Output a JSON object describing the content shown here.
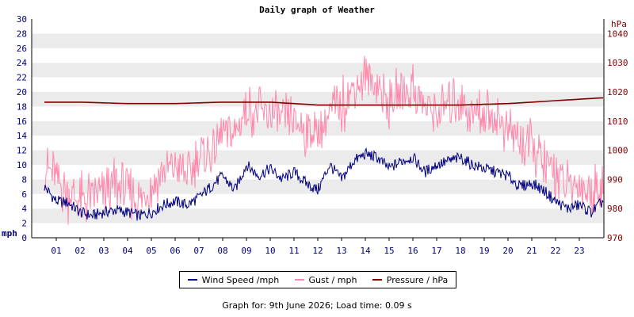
{
  "chart_data": {
    "type": "line",
    "title": "Daily graph of Weather",
    "ylabel_left": "mph",
    "ylabel_right": "hPa",
    "ylim_left": [
      0,
      30
    ],
    "ylim_right": [
      970,
      1045
    ],
    "yticks_left": [
      "0",
      "2",
      "4",
      "6",
      "8",
      "10",
      "12",
      "14",
      "16",
      "18",
      "20",
      "22",
      "24",
      "26",
      "28",
      "30"
    ],
    "yticks_right": [
      "970",
      "980",
      "990",
      "1000",
      "1010",
      "1020",
      "1030",
      "1040"
    ],
    "categories": [
      "01",
      "02",
      "03",
      "04",
      "05",
      "06",
      "07",
      "08",
      "09",
      "10",
      "11",
      "12",
      "13",
      "14",
      "15",
      "16",
      "17",
      "18",
      "19",
      "20",
      "21",
      "22",
      "23"
    ],
    "x_range_hours": [
      0.5,
      24
    ],
    "grid": "horizontal bands",
    "legend_position": "bottom",
    "series": [
      {
        "name": "Wind Speed /mph",
        "color": "#000080",
        "x": [
          0.5,
          1,
          1.5,
          2,
          2.5,
          3,
          3.5,
          4,
          4.5,
          5,
          5.5,
          6,
          6.5,
          7,
          7.5,
          8,
          8.5,
          9,
          9.5,
          10,
          10.5,
          11,
          11.5,
          12,
          12.5,
          13,
          13.5,
          14,
          14.5,
          15,
          15.5,
          16,
          16.5,
          17,
          17.5,
          18,
          18.5,
          19,
          19.5,
          20,
          20.5,
          21,
          21.5,
          22,
          22.5,
          23,
          23.5,
          24
        ],
        "values": [
          7,
          5,
          4.8,
          3.5,
          3,
          3.5,
          3.8,
          3.5,
          3,
          3.5,
          4.5,
          5,
          4.5,
          5.5,
          7,
          8.5,
          6.5,
          10,
          8.5,
          9.5,
          8,
          9,
          7.5,
          6.5,
          10,
          8,
          10.5,
          11.5,
          11,
          9.5,
          10.5,
          11,
          9,
          10,
          10.5,
          11,
          10,
          9.5,
          9,
          8.5,
          7,
          7.5,
          6.5,
          5,
          4,
          4.5,
          3.5,
          5
        ]
      },
      {
        "name": "Gust / mph",
        "color": "#ff88aa",
        "x": [
          0.5,
          1,
          1.5,
          2,
          2.5,
          3,
          3.5,
          4,
          4.5,
          5,
          5.5,
          6,
          6.5,
          7,
          7.5,
          8,
          8.5,
          9,
          9.5,
          10,
          10.5,
          11,
          11.5,
          12,
          12.5,
          13,
          13.5,
          14,
          14.5,
          15,
          15.5,
          16,
          16.5,
          17,
          17.5,
          18,
          18.5,
          19,
          19.5,
          20,
          20.5,
          21,
          21.5,
          22,
          22.5,
          23,
          23.5,
          24
        ],
        "values": [
          10,
          8,
          6,
          5,
          5.5,
          6,
          7,
          6.5,
          5,
          7,
          9,
          10,
          8.5,
          11,
          11.5,
          14.5,
          14,
          18,
          17,
          17,
          16,
          16,
          15,
          14,
          17,
          18,
          20.5,
          22,
          21,
          18,
          20,
          20.5,
          18,
          17,
          18.5,
          19,
          17,
          17,
          16.5,
          15,
          13,
          12.5,
          10,
          9,
          6.5,
          7.5,
          6,
          8
        ]
      },
      {
        "name": "Pressure / hPa",
        "color": "#800000",
        "axis": "right",
        "x": [
          0.5,
          2,
          4,
          6,
          8,
          10,
          12,
          14,
          16,
          18,
          20,
          22,
          23,
          24
        ],
        "values": [
          1016.5,
          1016.5,
          1016,
          1016,
          1016.5,
          1016.5,
          1015.5,
          1015.5,
          1015.5,
          1015.5,
          1016,
          1017,
          1017.5,
          1018
        ]
      }
    ]
  },
  "footer": "Graph for: 9th June 2026; Load time: 0.09 s"
}
